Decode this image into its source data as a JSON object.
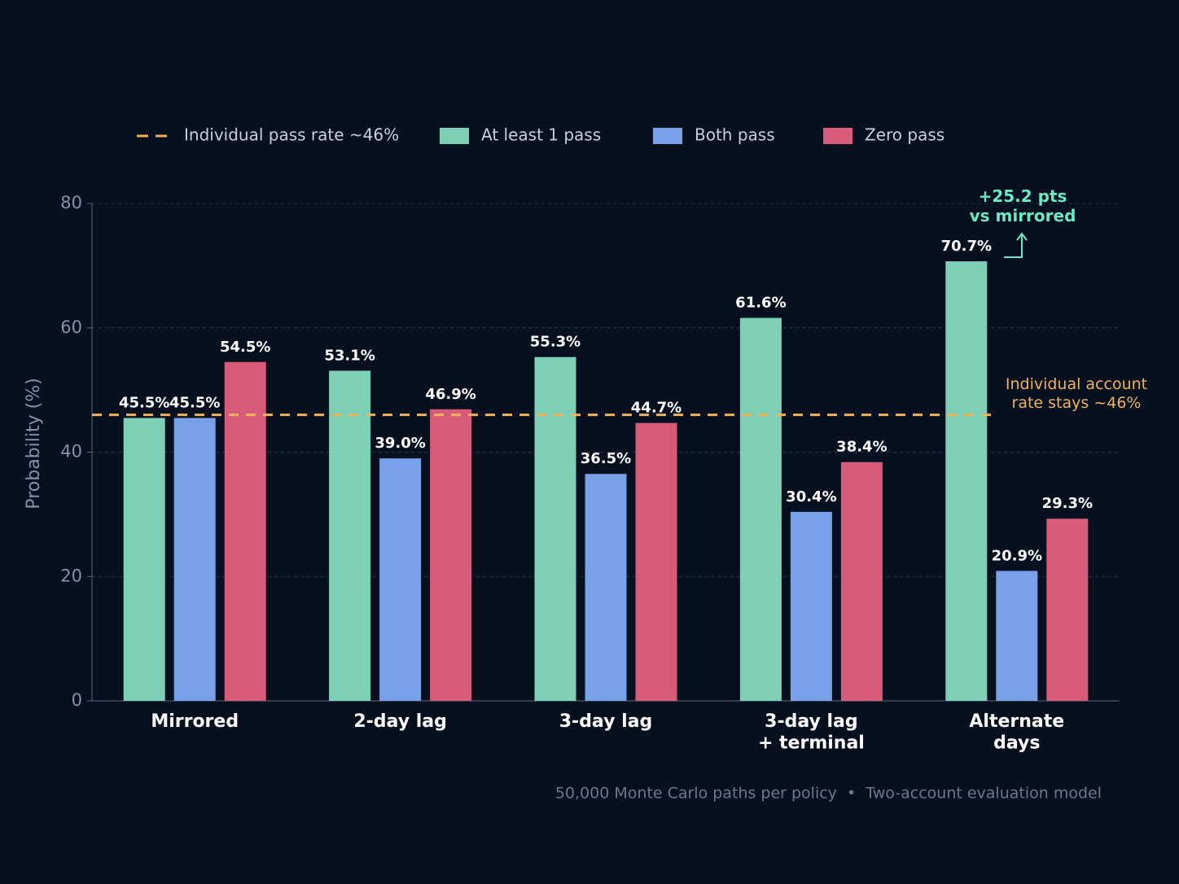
{
  "chart_data": {
    "type": "bar",
    "categories": [
      "Mirrored",
      "2-day lag",
      "3-day lag",
      "3-day lag\n+ terminal",
      "Alternate\ndays"
    ],
    "series": [
      {
        "name": "At least 1 pass",
        "color": "#7dcfb6",
        "values": [
          45.5,
          53.1,
          55.3,
          61.6,
          70.7
        ],
        "value_labels": [
          "45.5%",
          "53.1%",
          "55.3%",
          "61.6%",
          "70.7%"
        ]
      },
      {
        "name": "Both pass",
        "color": "#78a1ea",
        "values": [
          45.5,
          39.0,
          36.5,
          30.4,
          20.9
        ],
        "value_labels": [
          "45.5%",
          "39.0%",
          "36.5%",
          "30.4%",
          "20.9%"
        ]
      },
      {
        "name": "Zero pass",
        "color": "#d95b7a",
        "values": [
          54.5,
          46.9,
          44.7,
          38.4,
          29.3
        ],
        "value_labels": [
          "54.5%",
          "46.9%",
          "44.7%",
          "38.4%",
          "29.3%"
        ]
      }
    ],
    "reference_line": {
      "name": "Individual pass rate ~46%",
      "value": 46,
      "color": "#f0b25e"
    },
    "annotations": [
      "Individual account\nrate stays ~46%",
      "+25.2 pts\nvs mirrored"
    ],
    "ylabel": "Probability (%)",
    "ylim": [
      0,
      80
    ],
    "yticks": [
      0,
      20,
      40,
      60,
      80
    ],
    "grid": true,
    "legend": "top",
    "footnote": "50,000 Monte Carlo paths per policy  •  Two-account evaluation model"
  }
}
